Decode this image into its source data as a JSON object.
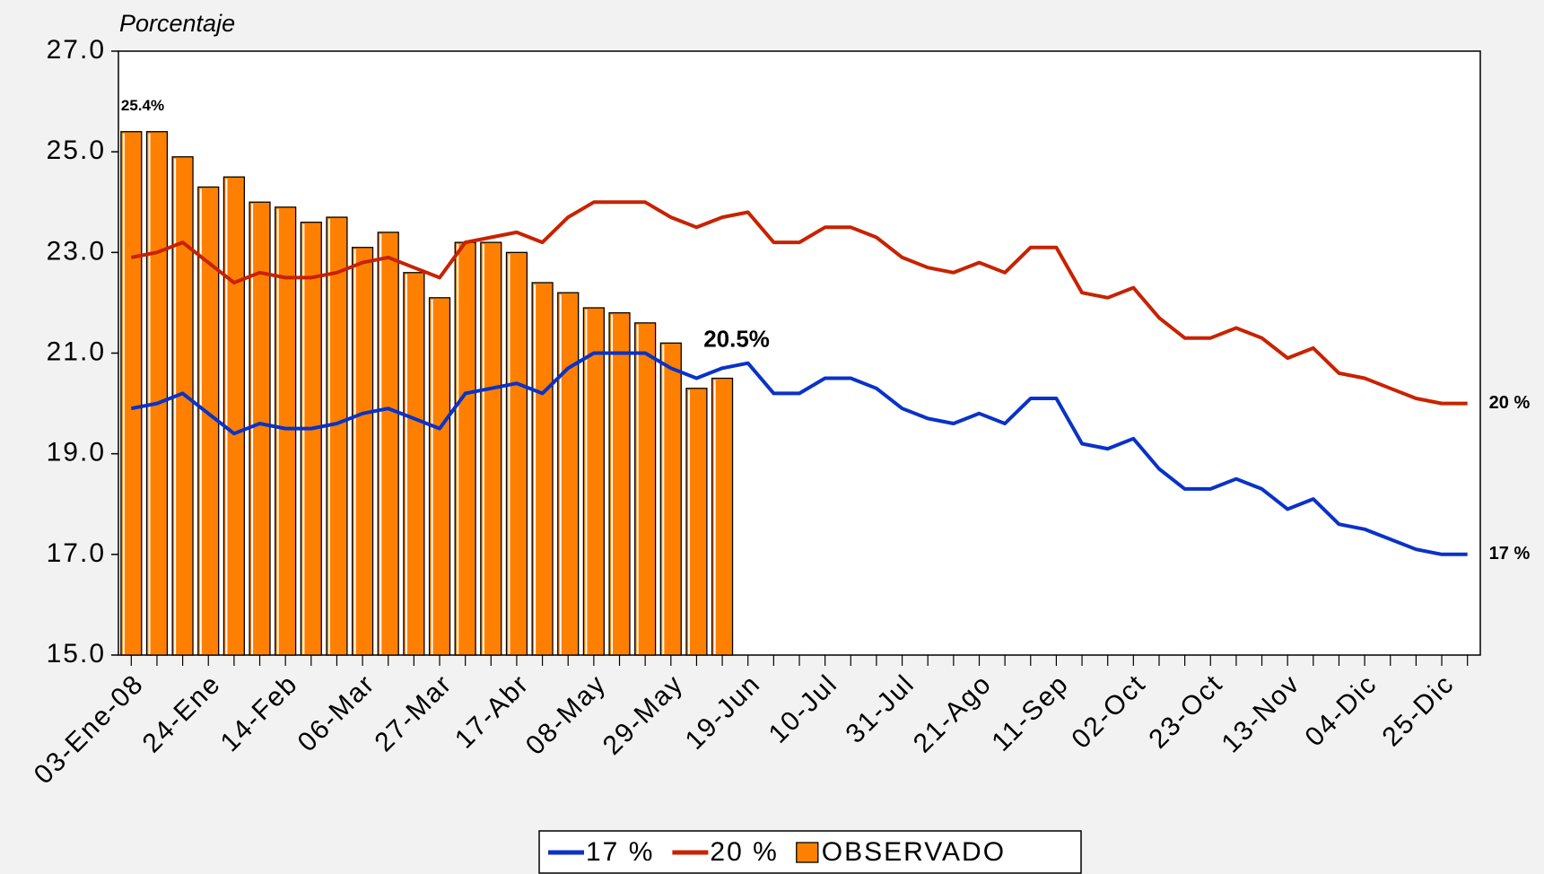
{
  "chart_data": {
    "type": "line",
    "y_label": "Porcentaje",
    "categories": [
      "03-Ene-08",
      null,
      null,
      "24-Ene",
      null,
      null,
      "14-Feb",
      null,
      null,
      "06-Mar",
      null,
      null,
      "27-Mar",
      null,
      null,
      "17-Abr",
      null,
      null,
      "08-May",
      null,
      null,
      "29-May",
      null,
      null,
      "19-Jun",
      null,
      null,
      "10-Jul",
      null,
      null,
      "31-Jul",
      null,
      null,
      "21-Ago",
      null,
      null,
      "11-Sep",
      null,
      null,
      "02-Oct",
      null,
      null,
      "23-Oct",
      null,
      null,
      "13-Nov",
      null,
      null,
      "04-Dic",
      null,
      null,
      "25-Dic",
      null
    ],
    "series": [
      {
        "name": "17 %",
        "color": "#0a32c8",
        "values": [
          19.9,
          20.0,
          20.2,
          19.8,
          19.4,
          19.6,
          19.5,
          19.5,
          19.6,
          19.8,
          19.9,
          19.7,
          19.5,
          20.2,
          20.3,
          20.4,
          20.2,
          20.7,
          21.0,
          21.0,
          21.0,
          20.7,
          20.5,
          20.7,
          20.8,
          20.2,
          20.2,
          20.5,
          20.5,
          20.3,
          19.9,
          19.7,
          19.6,
          19.8,
          19.6,
          20.1,
          20.1,
          19.2,
          19.1,
          19.3,
          18.7,
          18.3,
          18.3,
          18.5,
          18.3,
          17.9,
          18.1,
          17.6,
          17.5,
          17.3,
          17.1,
          17.0,
          17.0
        ]
      },
      {
        "name": "20 %",
        "color": "#c82200",
        "values": [
          22.9,
          23.0,
          23.2,
          22.8,
          22.4,
          22.6,
          22.5,
          22.5,
          22.6,
          22.8,
          22.9,
          22.7,
          22.5,
          23.2,
          23.3,
          23.4,
          23.2,
          23.7,
          24.0,
          24.0,
          24.0,
          23.7,
          23.5,
          23.7,
          23.8,
          23.2,
          23.2,
          23.5,
          23.5,
          23.3,
          22.9,
          22.7,
          22.6,
          22.8,
          22.6,
          23.1,
          23.1,
          22.2,
          22.1,
          22.3,
          21.7,
          21.3,
          21.3,
          21.5,
          21.3,
          20.9,
          21.1,
          20.6,
          20.5,
          20.3,
          20.1,
          20.0,
          20.0
        ]
      },
      {
        "name": "OBSERVADO",
        "type": "bar",
        "color": "#ff8000",
        "values": [
          25.4,
          25.4,
          24.9,
          24.3,
          24.5,
          24.0,
          23.9,
          23.6,
          23.7,
          23.1,
          23.4,
          22.6,
          22.1,
          23.2,
          23.2,
          23.0,
          22.4,
          22.2,
          21.9,
          21.8,
          21.6,
          21.2,
          20.3,
          20.5,
          null,
          null,
          null,
          null,
          null,
          null,
          null,
          null,
          null,
          null,
          null,
          null,
          null,
          null,
          null,
          null,
          null,
          null,
          null,
          null,
          null,
          null,
          null,
          null,
          null,
          null,
          null,
          null,
          null
        ],
        "value_labels": [
          "25.4%",
          null,
          null,
          null,
          null,
          null,
          null,
          null,
          null,
          null,
          null,
          null,
          null,
          null,
          null,
          null,
          null,
          null,
          null,
          null,
          null,
          null,
          null,
          "20.5%",
          null,
          null,
          null,
          null,
          null,
          null,
          null,
          null,
          null,
          null,
          null,
          null,
          null,
          null,
          null,
          null,
          null,
          null,
          null,
          null,
          null,
          null,
          null,
          null,
          null,
          null,
          null,
          null,
          null
        ]
      }
    ],
    "ylim": [
      15,
      27
    ],
    "yticks": [
      {
        "value": 15,
        "label": "15.0"
      },
      {
        "value": 17,
        "label": "17.0"
      },
      {
        "value": 19,
        "label": "19.0"
      },
      {
        "value": 21,
        "label": "21.0"
      },
      {
        "value": 23,
        "label": "23.0"
      },
      {
        "value": 25,
        "label": "25.0"
      },
      {
        "value": 27,
        "label": "27.0"
      }
    ],
    "grid": false,
    "legend": "bottom"
  }
}
